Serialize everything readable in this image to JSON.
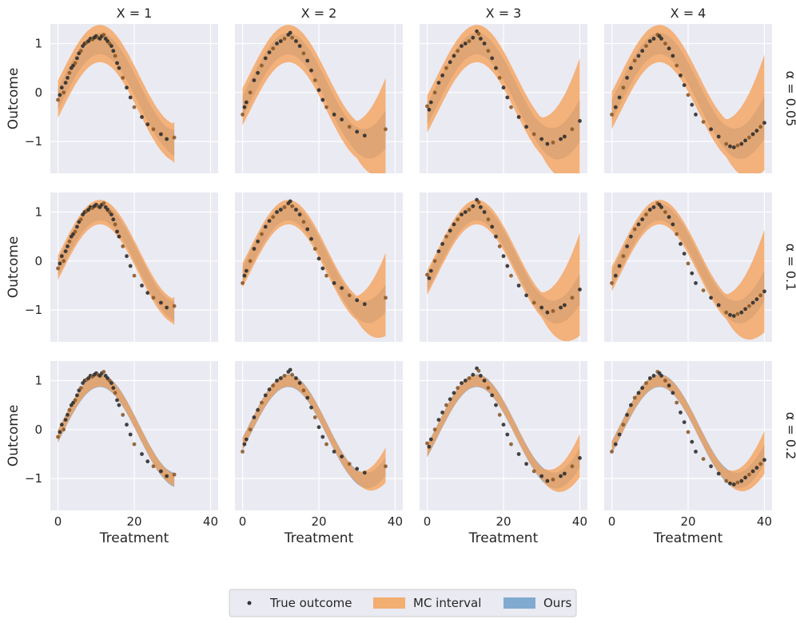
{
  "chart_data": {
    "type": "line",
    "description_columns": [
      "X = 1",
      "X = 2",
      "X = 3",
      "X = 4"
    ],
    "rows": [
      "α = 0.05",
      "α = 0.1",
      "α = 0.2"
    ],
    "xlabel": "Treatment",
    "ylabel": "Outcome",
    "xlim": [
      -2,
      42
    ],
    "ylim": [
      -1.65,
      1.4
    ],
    "xticks": [
      0,
      20,
      40
    ],
    "xtick_labels": [
      "0",
      "20",
      "40"
    ],
    "yticks": [
      1,
      0,
      -1
    ],
    "ytick_labels": [
      "1",
      "0",
      "−1"
    ],
    "x_max_by_column": [
      30.5,
      37.5,
      40,
      40
    ],
    "true_outcome_points": {
      "note": "Approximate scatter of the true outcome, identical across rows",
      "by_column": [
        [
          [
            0,
            -0.15
          ],
          [
            0.5,
            -0.05
          ],
          [
            1,
            0.1
          ],
          [
            1.5,
            0.0
          ],
          [
            2,
            0.2
          ],
          [
            2.5,
            0.3
          ],
          [
            3,
            0.4
          ],
          [
            3.5,
            0.5
          ],
          [
            4,
            0.55
          ],
          [
            4.5,
            0.6
          ],
          [
            5,
            0.7
          ],
          [
            5.5,
            0.8
          ],
          [
            6,
            0.85
          ],
          [
            6.5,
            0.95
          ],
          [
            7,
            1.0
          ],
          [
            7.5,
            1.02
          ],
          [
            8,
            1.05
          ],
          [
            8.5,
            1.1
          ],
          [
            9,
            1.08
          ],
          [
            9.5,
            1.12
          ],
          [
            10,
            1.15
          ],
          [
            10.5,
            1.12
          ],
          [
            11,
            1.1
          ],
          [
            11.5,
            1.15
          ],
          [
            12,
            1.18
          ],
          [
            12.5,
            1.1
          ],
          [
            13,
            1.05
          ],
          [
            13.5,
            1.0
          ],
          [
            14,
            0.95
          ],
          [
            14.5,
            0.85
          ],
          [
            15,
            0.75
          ],
          [
            15.5,
            0.6
          ],
          [
            16,
            0.5
          ],
          [
            17,
            0.3
          ],
          [
            18,
            0.1
          ],
          [
            19,
            -0.1
          ],
          [
            20,
            -0.3
          ],
          [
            22,
            -0.5
          ],
          [
            23.5,
            -0.65
          ],
          [
            25,
            -0.75
          ],
          [
            27,
            -0.85
          ],
          [
            28.5,
            -0.95
          ],
          [
            30.5,
            -0.92
          ]
        ],
        [
          [
            0,
            -0.45
          ],
          [
            0.5,
            -0.3
          ],
          [
            1,
            -0.2
          ],
          [
            2,
            0.0
          ],
          [
            3,
            0.25
          ],
          [
            4,
            0.4
          ],
          [
            5,
            0.55
          ],
          [
            6,
            0.7
          ],
          [
            7,
            0.82
          ],
          [
            8,
            0.9
          ],
          [
            9,
            1.0
          ],
          [
            10,
            1.05
          ],
          [
            11,
            1.1
          ],
          [
            12,
            1.18
          ],
          [
            12.5,
            1.22
          ],
          [
            13,
            1.12
          ],
          [
            14,
            1.05
          ],
          [
            15,
            0.95
          ],
          [
            16,
            0.8
          ],
          [
            17,
            0.65
          ],
          [
            18,
            0.45
          ],
          [
            19,
            0.25
          ],
          [
            20,
            0.05
          ],
          [
            21,
            -0.15
          ],
          [
            22,
            -0.3
          ],
          [
            24,
            -0.45
          ],
          [
            26,
            -0.55
          ],
          [
            28,
            -0.7
          ],
          [
            30,
            -0.8
          ],
          [
            32,
            -0.88
          ],
          [
            37.5,
            -0.75
          ]
        ],
        [
          [
            0,
            -0.28
          ],
          [
            0.5,
            -0.35
          ],
          [
            1,
            -0.2
          ],
          [
            2,
            0.0
          ],
          [
            3,
            0.2
          ],
          [
            4,
            0.35
          ],
          [
            5,
            0.5
          ],
          [
            6,
            0.62
          ],
          [
            7,
            0.75
          ],
          [
            8,
            0.85
          ],
          [
            9,
            0.95
          ],
          [
            10,
            1.0
          ],
          [
            11,
            1.05
          ],
          [
            12,
            1.12
          ],
          [
            13,
            1.25
          ],
          [
            13.5,
            1.2
          ],
          [
            14,
            1.1
          ],
          [
            15,
            1.0
          ],
          [
            16,
            0.85
          ],
          [
            17,
            0.7
          ],
          [
            18,
            0.5
          ],
          [
            19,
            0.3
          ],
          [
            20,
            0.1
          ],
          [
            21,
            -0.1
          ],
          [
            22,
            -0.3
          ],
          [
            24,
            -0.5
          ],
          [
            26,
            -0.7
          ],
          [
            28,
            -0.85
          ],
          [
            30,
            -0.95
          ],
          [
            31.5,
            -1.05
          ],
          [
            33,
            -1.02
          ],
          [
            35,
            -0.95
          ],
          [
            36,
            -0.9
          ],
          [
            38,
            -0.75
          ],
          [
            40,
            -0.58
          ]
        ],
        [
          [
            0,
            -0.45
          ],
          [
            1,
            -0.3
          ],
          [
            2,
            -0.1
          ],
          [
            3,
            0.1
          ],
          [
            4,
            0.3
          ],
          [
            5,
            0.5
          ],
          [
            6,
            0.65
          ],
          [
            7,
            0.75
          ],
          [
            8,
            0.85
          ],
          [
            9,
            0.95
          ],
          [
            10,
            1.05
          ],
          [
            11,
            1.1
          ],
          [
            12,
            1.18
          ],
          [
            12.5,
            1.15
          ],
          [
            13,
            1.1
          ],
          [
            14,
            1.0
          ],
          [
            15,
            0.9
          ],
          [
            16,
            0.75
          ],
          [
            17,
            0.55
          ],
          [
            18,
            0.35
          ],
          [
            19,
            0.15
          ],
          [
            20,
            -0.05
          ],
          [
            21,
            -0.25
          ],
          [
            22,
            -0.45
          ],
          [
            24,
            -0.6
          ],
          [
            26,
            -0.75
          ],
          [
            28,
            -0.9
          ],
          [
            30,
            -1.05
          ],
          [
            31,
            -1.1
          ],
          [
            32,
            -1.12
          ],
          [
            33,
            -1.08
          ],
          [
            34,
            -1.05
          ],
          [
            35,
            -0.98
          ],
          [
            36,
            -0.92
          ],
          [
            37,
            -0.85
          ],
          [
            38,
            -0.78
          ],
          [
            39,
            -0.7
          ],
          [
            40,
            -0.62
          ]
        ]
      ]
    },
    "legend": [
      {
        "label": "True outcome",
        "kind": "point",
        "color": "#333333"
      },
      {
        "label": "MC interval",
        "kind": "band",
        "color": "#f5a35c"
      },
      {
        "label": "Ours",
        "kind": "band",
        "color": "#6f9fcb"
      }
    ],
    "colors": {
      "panel_bg": "#eaeaf2",
      "mc_interval": "#f5a35c",
      "ours": "#6f9fcb",
      "point": "#2f2f2f",
      "point_overlay": "#8a5a2b"
    }
  }
}
